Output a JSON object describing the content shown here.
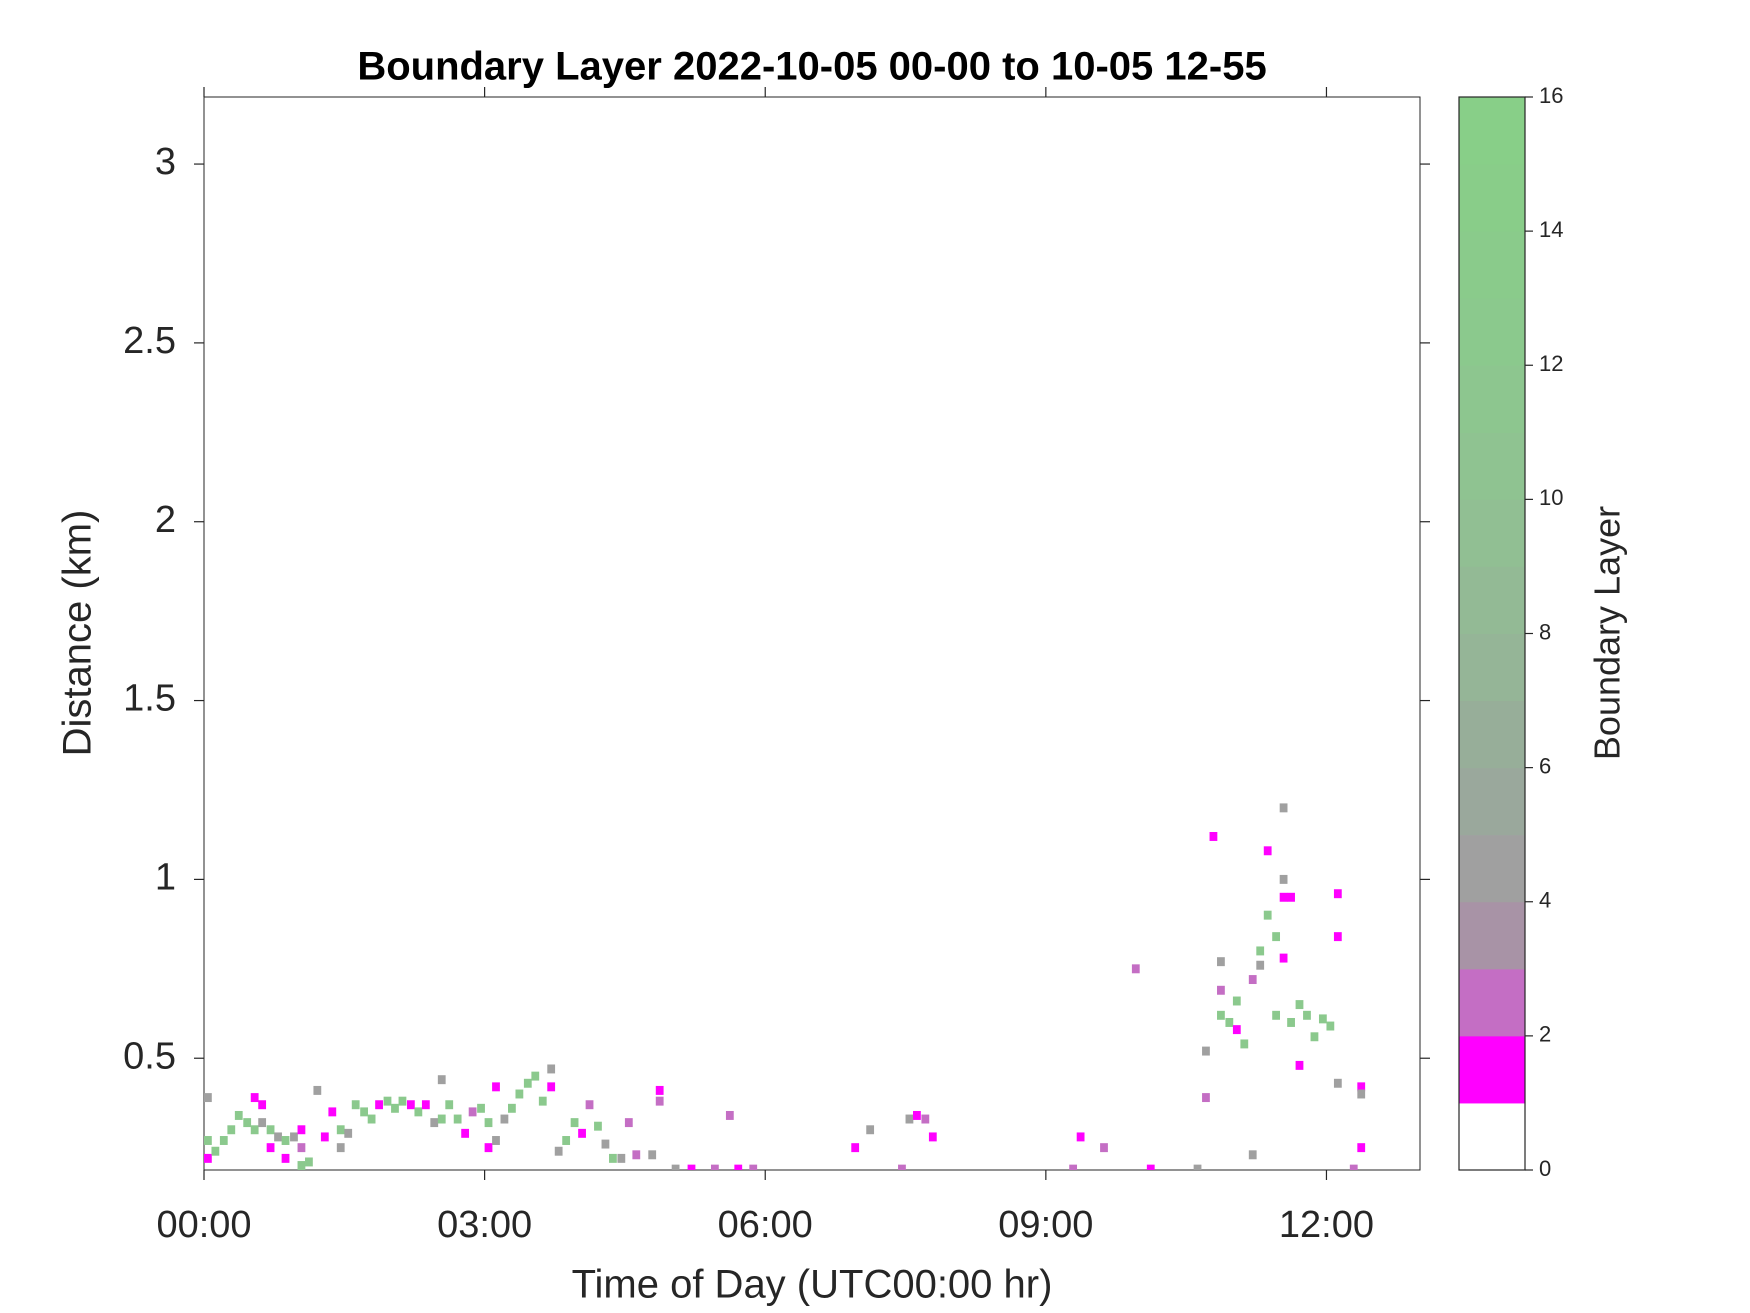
{
  "chart_data": {
    "type": "heatmap",
    "title": "Boundary Layer 2022-10-05 00-00 to 10-05 12-55",
    "xlabel": "Time of Day (UTC00:00 hr)",
    "ylabel": "Distance (km)",
    "colorbar_label": "Boundary Layer",
    "xlim": [
      0,
      13
    ],
    "ylim": [
      0.1875,
      3.1875
    ],
    "xticks": [
      {
        "value": 0,
        "label": "00:00"
      },
      {
        "value": 3,
        "label": "03:00"
      },
      {
        "value": 6,
        "label": "06:00"
      },
      {
        "value": 9,
        "label": "09:00"
      },
      {
        "value": 12,
        "label": "12:00"
      }
    ],
    "yticks": [
      0.5,
      1,
      1.5,
      2,
      2.5,
      3
    ],
    "clim": [
      0,
      16
    ],
    "cticks": [
      0,
      2,
      4,
      6,
      8,
      10,
      12,
      14,
      16
    ],
    "colormap": [
      "#ffffff",
      "#ff00ff",
      "#c46ec4",
      "#a893a6",
      "#a0a0a0",
      "#9aa89c",
      "#97ae99",
      "#95b597",
      "#93ba95",
      "#91bf93",
      "#8fc391",
      "#8dc68f",
      "#8bc98d",
      "#8acb8b",
      "#89cd89",
      "#88cf88"
    ],
    "x": [
      0.0,
      0.0,
      0.0,
      0.08,
      0.17,
      0.25,
      0.33,
      0.42,
      0.5,
      0.5,
      0.58,
      0.58,
      0.67,
      0.67,
      0.75,
      0.83,
      0.83,
      0.92,
      1.0,
      1.08,
      1.0,
      1.0,
      1.17,
      1.25,
      1.33,
      1.42,
      1.42,
      1.5,
      1.58,
      1.67,
      1.75,
      1.83,
      1.92,
      2.0,
      2.08,
      2.17,
      2.25,
      2.33,
      2.42,
      2.5,
      2.5,
      2.58,
      2.67,
      2.75,
      2.83,
      2.92,
      3.0,
      3.0,
      3.08,
      3.08,
      3.17,
      3.25,
      3.33,
      3.42,
      3.5,
      3.58,
      3.67,
      3.67,
      3.75,
      3.83,
      3.92,
      4.0,
      4.08,
      4.17,
      4.25,
      4.33,
      4.42,
      4.5,
      4.58,
      4.75,
      4.83,
      4.83,
      5.0,
      5.17,
      5.42,
      5.58,
      5.67,
      5.83,
      6.92,
      7.08,
      7.42,
      7.5,
      7.58,
      7.67,
      7.75,
      9.33,
      9.58,
      9.25,
      9.92,
      10.08,
      10.58,
      10.67,
      10.67,
      10.75,
      10.83,
      10.83,
      10.83,
      10.92,
      11.0,
      11.0,
      11.08,
      11.17,
      11.17,
      11.25,
      11.25,
      11.33,
      11.33,
      11.42,
      11.42,
      11.5,
      11.5,
      11.5,
      11.5,
      11.58,
      11.58,
      11.67,
      11.67,
      11.75,
      11.83,
      11.92,
      12.0,
      12.08,
      12.08,
      12.08,
      12.25,
      12.33,
      12.33,
      12.33
    ],
    "y": [
      0.22,
      0.27,
      0.39,
      0.24,
      0.27,
      0.3,
      0.34,
      0.32,
      0.39,
      0.3,
      0.37,
      0.32,
      0.25,
      0.3,
      0.28,
      0.22,
      0.27,
      0.28,
      0.2,
      0.21,
      0.3,
      0.25,
      0.41,
      0.28,
      0.35,
      0.25,
      0.3,
      0.29,
      0.37,
      0.35,
      0.33,
      0.37,
      0.38,
      0.36,
      0.38,
      0.37,
      0.35,
      0.37,
      0.32,
      0.44,
      0.33,
      0.37,
      0.33,
      0.29,
      0.35,
      0.36,
      0.25,
      0.32,
      0.42,
      0.27,
      0.33,
      0.36,
      0.4,
      0.43,
      0.45,
      0.38,
      0.42,
      0.47,
      0.24,
      0.27,
      0.32,
      0.29,
      0.37,
      0.31,
      0.26,
      0.22,
      0.22,
      0.32,
      0.23,
      0.23,
      0.41,
      0.38,
      0.19,
      0.19,
      0.19,
      0.34,
      0.19,
      0.19,
      0.25,
      0.3,
      0.19,
      0.33,
      0.34,
      0.33,
      0.28,
      0.28,
      0.25,
      0.19,
      0.75,
      0.19,
      0.19,
      0.39,
      0.52,
      1.12,
      0.77,
      0.69,
      0.62,
      0.6,
      0.66,
      0.58,
      0.54,
      0.72,
      0.23,
      0.8,
      0.76,
      0.9,
      1.08,
      0.84,
      0.62,
      1.2,
      1.0,
      0.95,
      0.78,
      0.95,
      0.6,
      0.48,
      0.65,
      0.62,
      0.56,
      0.61,
      0.59,
      0.84,
      0.96,
      0.43,
      0.19,
      0.42,
      0.25,
      0.4
    ],
    "values": [
      1,
      12,
      4,
      12,
      12,
      12,
      12,
      12,
      1,
      12,
      1,
      4,
      1,
      12,
      4,
      1,
      12,
      4,
      12,
      12,
      1,
      2,
      4,
      1,
      1,
      4,
      12,
      4,
      12,
      12,
      12,
      1,
      12,
      12,
      12,
      1,
      12,
      1,
      4,
      4,
      12,
      12,
      12,
      1,
      2,
      12,
      1,
      12,
      1,
      4,
      4,
      12,
      12,
      12,
      12,
      12,
      1,
      4,
      4,
      12,
      12,
      1,
      2,
      12,
      4,
      12,
      4,
      2,
      2,
      4,
      1,
      2,
      4,
      1,
      2,
      2,
      1,
      2,
      1,
      4,
      2,
      4,
      1,
      2,
      1,
      1,
      2,
      2,
      2,
      1,
      4,
      2,
      4,
      1,
      4,
      2,
      12,
      12,
      12,
      1,
      12,
      2,
      4,
      12,
      4,
      12,
      1,
      12,
      12,
      4,
      4,
      1,
      1,
      1,
      12,
      1,
      12,
      12,
      12,
      12,
      12,
      1,
      1,
      4,
      2,
      1,
      1,
      4
    ]
  }
}
